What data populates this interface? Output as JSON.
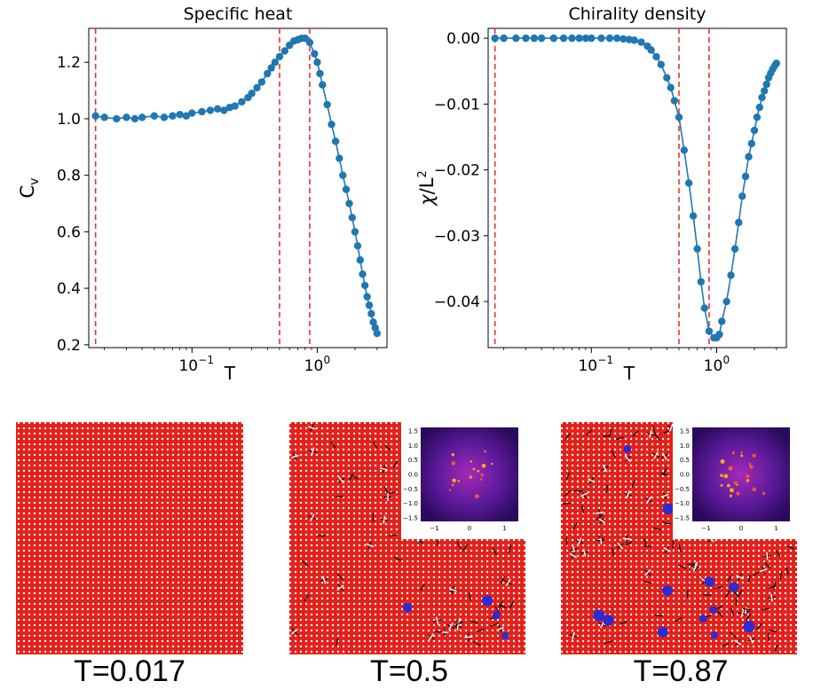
{
  "chart_data": [
    {
      "type": "line",
      "title": "Specific heat",
      "xlabel": "T",
      "ylabel": "C_v",
      "xscale": "log",
      "xlim": [
        0.015,
        3.6
      ],
      "ylim": [
        0.19,
        1.32
      ],
      "yticks": [
        0.2,
        0.4,
        0.6,
        0.8,
        1.0,
        1.2
      ],
      "ytick_labels": [
        "0.2",
        "0.4",
        "0.6",
        "0.8",
        "1.0",
        "1.2"
      ],
      "xticks": [
        0.1,
        1
      ],
      "xtick_labels": [
        "10",
        "10"
      ],
      "xtick_exps": [
        "−1",
        "0"
      ],
      "vlines": [
        0.017,
        0.5,
        0.87
      ],
      "color": "#1f77b4",
      "vline_color": "#e8322e",
      "grid": false,
      "series": [
        {
          "x": [
            0.017,
            0.02,
            0.025,
            0.03,
            0.035,
            0.04,
            0.05,
            0.06,
            0.07,
            0.08,
            0.09,
            0.1,
            0.12,
            0.14,
            0.16,
            0.18,
            0.2,
            0.22,
            0.25,
            0.28,
            0.3,
            0.33,
            0.36,
            0.4,
            0.43,
            0.46,
            0.5,
            0.55,
            0.6,
            0.65,
            0.7,
            0.75,
            0.8,
            0.87,
            0.95,
            1.0,
            1.05,
            1.1,
            1.2,
            1.3,
            1.4,
            1.5,
            1.6,
            1.7,
            1.8,
            1.9,
            2.0,
            2.1,
            2.2,
            2.3,
            2.4,
            2.5,
            2.6,
            2.7,
            2.8,
            2.9,
            3.0
          ],
          "y": [
            1.01,
            1.005,
            1.0,
            1.005,
            1.0,
            1.005,
            1.01,
            1.005,
            1.01,
            1.015,
            1.01,
            1.02,
            1.025,
            1.03,
            1.035,
            1.03,
            1.04,
            1.045,
            1.06,
            1.075,
            1.09,
            1.11,
            1.13,
            1.16,
            1.18,
            1.2,
            1.22,
            1.24,
            1.26,
            1.275,
            1.28,
            1.285,
            1.285,
            1.27,
            1.23,
            1.2,
            1.16,
            1.12,
            1.05,
            0.98,
            0.92,
            0.86,
            0.8,
            0.75,
            0.7,
            0.65,
            0.6,
            0.55,
            0.5,
            0.45,
            0.41,
            0.37,
            0.34,
            0.31,
            0.28,
            0.26,
            0.24
          ]
        }
      ]
    },
    {
      "type": "line",
      "title": "Chirality density",
      "xlabel": "T",
      "ylabel": "χ/L²",
      "xscale": "log",
      "xlim": [
        0.015,
        3.6
      ],
      "ylim": [
        -0.047,
        0.0015
      ],
      "yticks": [
        0.0,
        -0.01,
        -0.02,
        -0.03,
        -0.04
      ],
      "ytick_labels": [
        "0.00",
        "−0.01",
        "−0.02",
        "−0.03",
        "−0.04"
      ],
      "xticks": [
        0.1,
        1
      ],
      "xtick_labels": [
        "10",
        "10"
      ],
      "xtick_exps": [
        "−1",
        "0"
      ],
      "vlines": [
        0.017,
        0.5,
        0.87
      ],
      "color": "#1f77b4",
      "vline_color": "#e8322e",
      "grid": false,
      "series": [
        {
          "x": [
            0.017,
            0.02,
            0.025,
            0.03,
            0.035,
            0.04,
            0.05,
            0.06,
            0.07,
            0.08,
            0.09,
            0.1,
            0.12,
            0.14,
            0.16,
            0.18,
            0.2,
            0.22,
            0.25,
            0.28,
            0.3,
            0.33,
            0.36,
            0.4,
            0.43,
            0.46,
            0.5,
            0.55,
            0.6,
            0.65,
            0.7,
            0.75,
            0.8,
            0.87,
            0.95,
            1.0,
            1.05,
            1.1,
            1.2,
            1.3,
            1.4,
            1.5,
            1.6,
            1.7,
            1.8,
            1.9,
            2.0,
            2.1,
            2.2,
            2.3,
            2.4,
            2.5,
            2.6,
            2.7,
            2.8,
            2.9,
            3.0
          ],
          "y": [
            0.0,
            0.0,
            0.0,
            0.0,
            0.0,
            0.0,
            0.0,
            0.0,
            0.0,
            0.0,
            0.0,
            0.0,
            0.0,
            0.0,
            0.0,
            -0.0001,
            -0.0002,
            -0.0003,
            -0.0006,
            -0.0012,
            -0.0018,
            -0.0028,
            -0.004,
            -0.006,
            -0.0075,
            -0.0095,
            -0.012,
            -0.017,
            -0.022,
            -0.027,
            -0.032,
            -0.037,
            -0.041,
            -0.0445,
            -0.0455,
            -0.0455,
            -0.045,
            -0.043,
            -0.04,
            -0.036,
            -0.032,
            -0.028,
            -0.024,
            -0.021,
            -0.018,
            -0.016,
            -0.014,
            -0.012,
            -0.0105,
            -0.009,
            -0.008,
            -0.007,
            -0.006,
            -0.0053,
            -0.0047,
            -0.0042,
            -0.0038
          ]
        }
      ]
    }
  ],
  "snapshots": [
    {
      "caption": "T=0.017",
      "has_inset": false
    },
    {
      "caption": "T=0.5",
      "has_inset": true,
      "inset_yticks": [
        "1.5",
        "1.0",
        "0.5",
        "0.0",
        "−0.5",
        "−1.0",
        "−1.5"
      ],
      "inset_xticks": [
        "−1",
        "0",
        "1"
      ]
    },
    {
      "caption": "T=0.87",
      "has_inset": true,
      "inset_yticks": [
        "1.5",
        "1.0",
        "0.5",
        "0.0",
        "−0.5",
        "−1.0",
        "−1.5"
      ],
      "inset_xticks": [
        "−1",
        "0",
        "1"
      ]
    }
  ],
  "colors": {
    "lattice_red": "#e3211b",
    "spin_white": "#ffffff",
    "defect_blue": "#2c2cd0",
    "inset_bg": "#3a0f6e"
  }
}
